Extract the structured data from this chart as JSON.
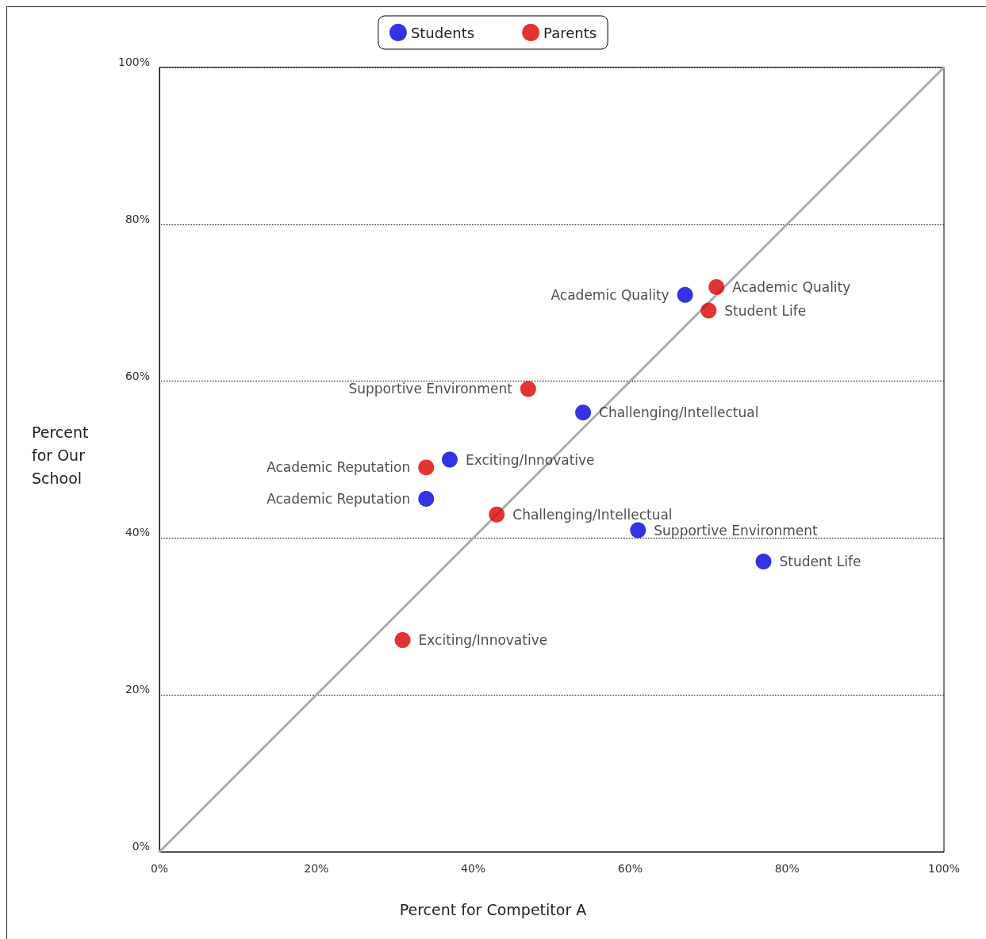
{
  "chart_data": {
    "type": "scatter",
    "xlabel": "Percent for Competitor A",
    "ylabel": "Percent for Our School",
    "xlim": [
      0,
      100
    ],
    "ylim": [
      0,
      100
    ],
    "xticks": [
      {
        "value": 0,
        "label": "0%"
      },
      {
        "value": 20,
        "label": "20%"
      },
      {
        "value": 40,
        "label": "40%"
      },
      {
        "value": 60,
        "label": "60%"
      },
      {
        "value": 80,
        "label": "80%"
      },
      {
        "value": 100,
        "label": "100%"
      }
    ],
    "yticks": [
      {
        "value": 0,
        "label": "0%"
      },
      {
        "value": 20,
        "label": "20%"
      },
      {
        "value": 40,
        "label": "40%"
      },
      {
        "value": 60,
        "label": "60%"
      },
      {
        "value": 80,
        "label": "80%"
      },
      {
        "value": 100,
        "label": "100%"
      }
    ],
    "grid": "y",
    "legend": "top",
    "marker": "circle",
    "series": [
      {
        "type": "line",
        "color": "#aaaaaa",
        "marker": "none",
        "line_style": "solid",
        "x": [
          0,
          100
        ],
        "values": [
          0,
          100
        ]
      },
      {
        "name": "Students",
        "color": "#0000dd",
        "x": [
          67,
          54,
          37,
          34,
          61,
          77
        ],
        "values": [
          71,
          56,
          50,
          45,
          41,
          37
        ],
        "value_labels": [
          "Academic Quality",
          "Challenging/Intellectual",
          "Exciting/Innovative",
          "Academic Reputation",
          "Supportive Environment",
          "Student Life"
        ]
      },
      {
        "name": "Parents",
        "color": "#dd0000",
        "x": [
          71,
          70,
          47,
          34,
          43,
          31
        ],
        "values": [
          72,
          69,
          59,
          49,
          43,
          27
        ],
        "value_labels": [
          "Academic Quality",
          "Student Life",
          "Supportive Environment",
          "Academic Reputation",
          "Challenging/Intellectual",
          "Exciting/Innovative"
        ]
      }
    ]
  }
}
